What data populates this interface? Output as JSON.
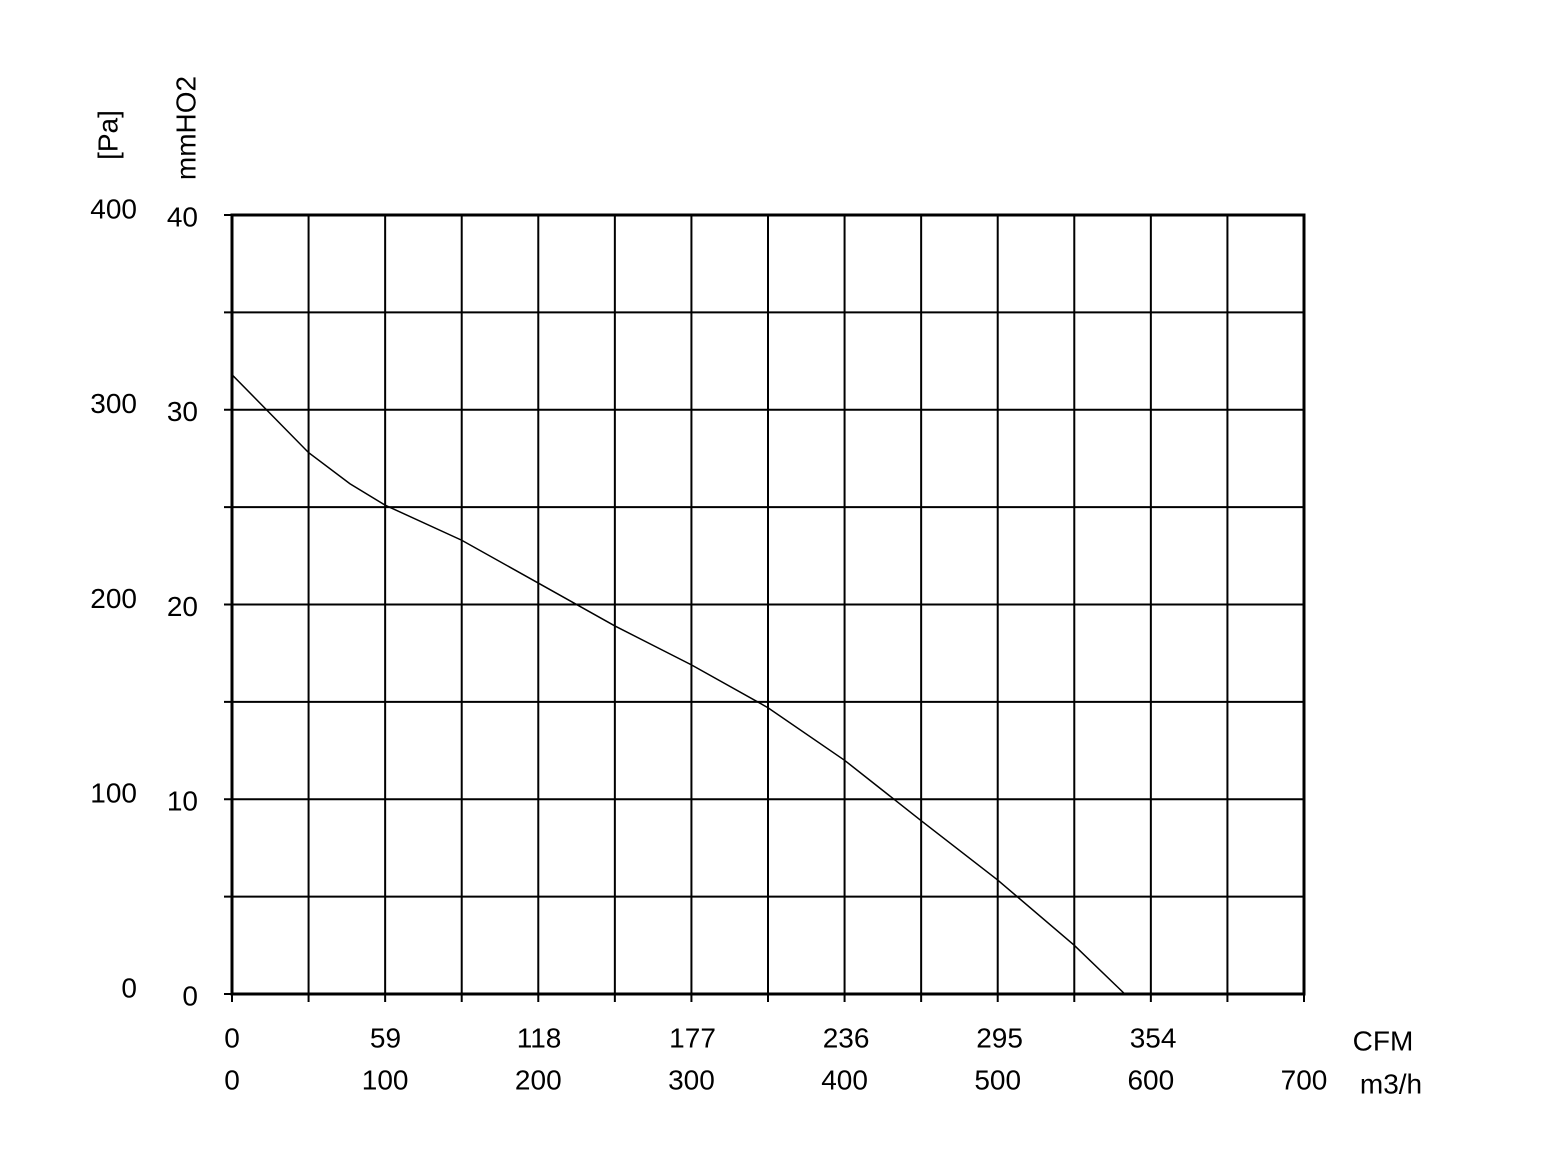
{
  "chart_data": {
    "type": "line",
    "x_label": "m3/h",
    "x2_label": "CFM",
    "y_label": "[Pa]",
    "y2_label": "mmHO2",
    "xlim": [
      0,
      700
    ],
    "xticks": [
      0,
      100,
      200,
      300,
      400,
      500,
      600,
      700
    ],
    "x2lim": [
      0,
      412
    ],
    "x2ticks": [
      0,
      59,
      118,
      177,
      236,
      295,
      354
    ],
    "ylim": [
      0,
      400
    ],
    "yticks": [
      0,
      100,
      200,
      300,
      400
    ],
    "y2lim": [
      0,
      40
    ],
    "y2ticks": [
      0,
      10,
      20,
      30,
      40
    ],
    "xgrid": [
      0,
      50,
      100,
      150,
      200,
      250,
      300,
      350,
      400,
      450,
      500,
      550,
      600,
      650,
      700
    ],
    "ygrid": [
      0,
      50,
      100,
      150,
      200,
      250,
      300,
      350,
      400
    ],
    "x": [
      0,
      50,
      77,
      100,
      150,
      200,
      250,
      300,
      350,
      400,
      450,
      500,
      550,
      583
    ],
    "series": [
      {
        "color": "#000000",
        "values": [
          318,
          278,
          262,
          251,
          233,
          211,
          189,
          169,
          147,
          120,
          89,
          58.5,
          25,
          0
        ]
      }
    ]
  }
}
